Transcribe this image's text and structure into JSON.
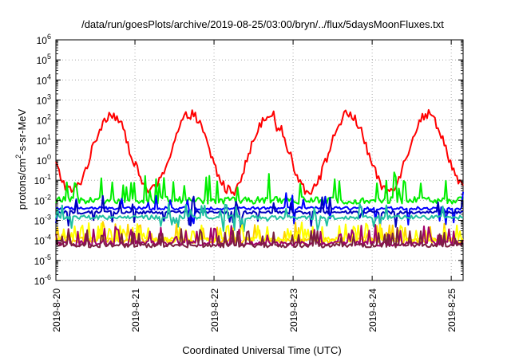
{
  "chart_data": {
    "type": "line",
    "title": "/data/run/goesPlots/archive/2019-08-25/03:00/bryn/../flux/5daysMoonFluxes.txt",
    "xlabel": "Coordinated Universal Time (UTC)",
    "ylabel": "protons/cm²-s-sr-MeV",
    "ylabel_parts": {
      "prefix": "protons/cm",
      "sup": "2",
      "suffix": "-s-sr-MeV"
    },
    "yscale": "log",
    "ylim_exp": [
      -6,
      6
    ],
    "ytick_exponents": [
      "-6",
      "-5",
      "-4",
      "-3",
      "-2",
      "-1",
      "0",
      "1",
      "2",
      "3",
      "4",
      "5",
      "6"
    ],
    "ytick_base": "10",
    "x_range_days": [
      "2019-8-20",
      "2019-8-25 06:00"
    ],
    "xtick_labels": [
      "2019-8-20",
      "2019-8-21",
      "2019-8-22",
      "2019-8-23",
      "2019-8-24",
      "2019-8-25"
    ],
    "grid": true,
    "series": [
      {
        "color": "#ff0000",
        "profile": "diurnal",
        "base": -1.5,
        "amp": 3.8,
        "noise": 0.25
      },
      {
        "color": "#00ee00",
        "profile": "spiky",
        "base": -2.0,
        "spike": 1.3,
        "noise": 0.35
      },
      {
        "color": "#0000ff",
        "profile": "flat",
        "base": -2.4,
        "spike": 0.9,
        "noise": 0.15
      },
      {
        "color": "#0000bb",
        "profile": "flat",
        "base": -2.6,
        "spike": 0.8,
        "noise": 0.15
      },
      {
        "color": "#20c0a0",
        "profile": "flat",
        "base": -2.85,
        "spike": 0.7,
        "noise": 0.2
      },
      {
        "color": "#ffd200",
        "profile": "spiky",
        "base": -4.0,
        "spike": 0.9,
        "noise": 0.3
      },
      {
        "color": "#ffff00",
        "profile": "spiky",
        "base": -3.95,
        "spike": 0.8,
        "noise": 0.2
      },
      {
        "color": "#a0006a",
        "profile": "spiky",
        "base": -4.15,
        "spike": 0.9,
        "noise": 0.25
      },
      {
        "color": "#7a2040",
        "profile": "spiky",
        "base": -4.25,
        "spike": 0.8,
        "noise": 0.2
      }
    ]
  }
}
